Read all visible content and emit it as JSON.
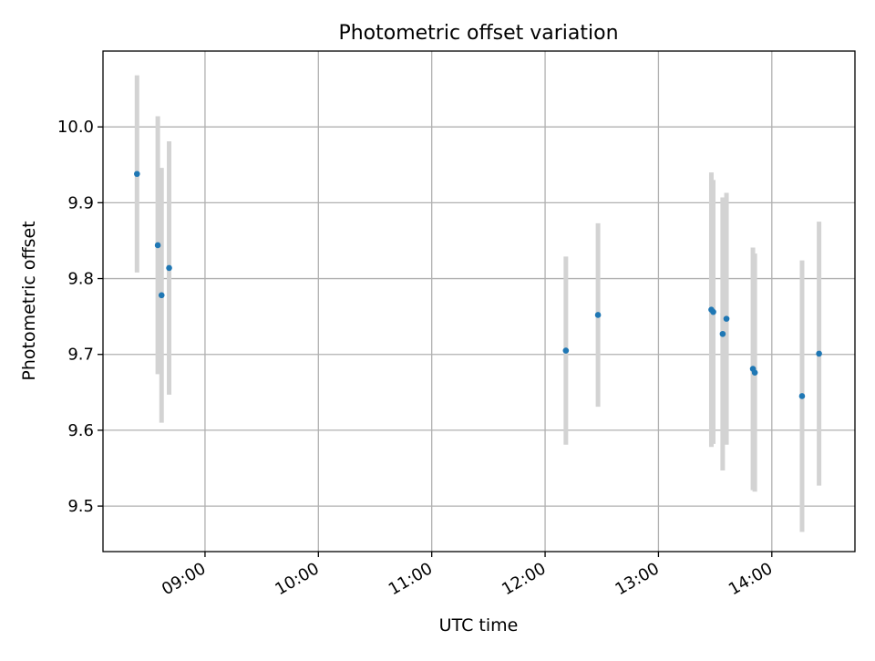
{
  "chart_data": {
    "type": "scatter",
    "title": "Photometric offset variation",
    "xlabel": "UTC time",
    "ylabel": "Photometric offset",
    "x_unit": "time of day (UTC)",
    "xlim": [
      "08:06",
      "14:44"
    ],
    "ylim": [
      9.44,
      10.1
    ],
    "x_ticks": [
      "09:00",
      "10:00",
      "11:00",
      "12:00",
      "13:00",
      "14:00"
    ],
    "y_ticks": [
      "9.5",
      "9.6",
      "9.7",
      "9.8",
      "9.9",
      "10.0"
    ],
    "grid": true,
    "colors": {
      "point": "#1f77b4",
      "errorbar": "#d3d3d3",
      "grid": "#b0b0b0",
      "axes": "#000000"
    },
    "points": [
      {
        "x": "08:24",
        "y": 9.938,
        "yerr": 0.13
      },
      {
        "x": "08:35",
        "y": 9.844,
        "yerr": 0.17
      },
      {
        "x": "08:37",
        "y": 9.778,
        "yerr": 0.168
      },
      {
        "x": "08:41",
        "y": 9.814,
        "yerr": 0.167
      },
      {
        "x": "12:11",
        "y": 9.705,
        "yerr": 0.124
      },
      {
        "x": "12:28",
        "y": 9.752,
        "yerr": 0.121
      },
      {
        "x": "13:28",
        "y": 9.759,
        "yerr": 0.181
      },
      {
        "x": "13:29",
        "y": 9.756,
        "yerr": 0.174
      },
      {
        "x": "13:34",
        "y": 9.727,
        "yerr": 0.18
      },
      {
        "x": "13:36",
        "y": 9.747,
        "yerr": 0.166
      },
      {
        "x": "13:50",
        "y": 9.681,
        "yerr": 0.16
      },
      {
        "x": "13:51",
        "y": 9.676,
        "yerr": 0.157
      },
      {
        "x": "14:16",
        "y": 9.645,
        "yerr": 0.179
      },
      {
        "x": "14:25",
        "y": 9.701,
        "yerr": 0.174
      }
    ]
  }
}
